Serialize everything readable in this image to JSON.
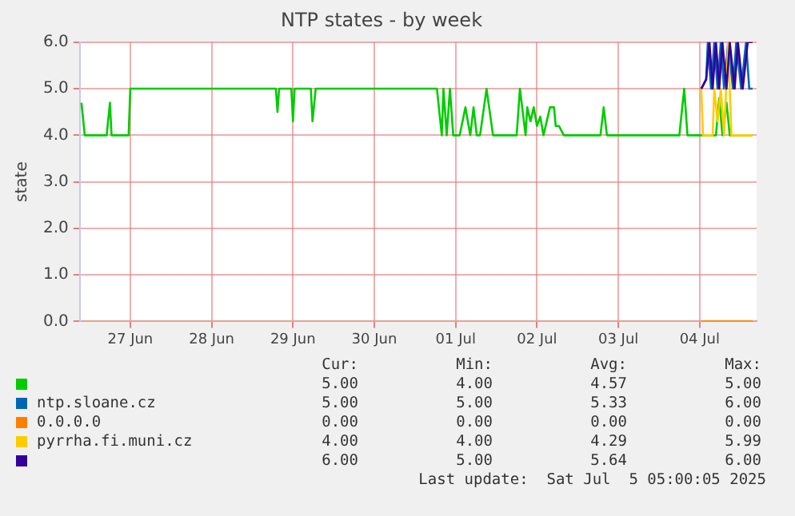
{
  "chart_data": {
    "type": "line",
    "title": "NTP states - by week",
    "ylabel": "state",
    "xlim": [
      "2025-06-26T21:07",
      "2025-07-05T04:48"
    ],
    "xticks": [
      {
        "value": "2025-06-27T12:00",
        "label": "27 Jun"
      },
      {
        "value": "2025-06-28T12:00",
        "label": "28 Jun"
      },
      {
        "value": "2025-06-29T12:00",
        "label": "29 Jun"
      },
      {
        "value": "2025-06-30T12:00",
        "label": "30 Jun"
      },
      {
        "value": "2025-07-01T12:00",
        "label": "01 Jul"
      },
      {
        "value": "2025-07-02T12:00",
        "label": "02 Jul"
      },
      {
        "value": "2025-07-03T12:00",
        "label": "03 Jul"
      },
      {
        "value": "2025-07-04T12:00",
        "label": "04 Jul"
      }
    ],
    "ylim": [
      0,
      6
    ],
    "yticks": [
      {
        "value": 0,
        "label": "0.0"
      },
      {
        "value": 1,
        "label": "1.0"
      },
      {
        "value": 2,
        "label": "2.0"
      },
      {
        "value": 3,
        "label": "3.0"
      },
      {
        "value": 4,
        "label": "4.0"
      },
      {
        "value": 5,
        "label": "5.0"
      },
      {
        "value": 6,
        "label": "6.0"
      }
    ],
    "grid": true,
    "legend": "bottom",
    "marker": "none",
    "line_style": "solid",
    "series": [
      {
        "color": "#00cc00",
        "x": [
          "2025-06-26T21:36",
          "2025-06-26T22:34",
          "2025-06-27T05:02",
          "2025-06-27T06:00",
          "2025-06-27T06:29",
          "2025-06-27T11:31",
          "2025-06-27T12:00",
          "2025-06-29T06:58",
          "2025-06-29T07:26",
          "2025-06-29T07:55",
          "2025-06-29T11:31",
          "2025-06-29T12:00",
          "2025-06-29T12:29",
          "2025-06-29T17:17",
          "2025-06-29T17:46",
          "2025-06-29T18:43",
          "2025-07-01T06:29",
          "2025-07-01T07:55",
          "2025-07-01T08:24",
          "2025-07-01T09:22",
          "2025-07-01T10:19",
          "2025-07-01T11:17",
          "2025-07-01T13:12",
          "2025-07-01T14:53",
          "2025-07-01T16:19",
          "2025-07-01T17:17",
          "2025-07-01T18:14",
          "2025-07-01T19:12",
          "2025-07-01T21:07",
          "2025-07-01T23:02",
          "2025-07-02T00:14",
          "2025-07-02T06:00",
          "2025-07-02T06:58",
          "2025-07-02T08:38",
          "2025-07-02T09:07",
          "2025-07-02T10:05",
          "2025-07-02T11:02",
          "2025-07-02T12:00",
          "2025-07-02T12:58",
          "2025-07-02T13:55",
          "2025-07-02T15:50",
          "2025-07-02T17:02",
          "2025-07-02T17:31",
          "2025-07-02T18:29",
          "2025-07-02T19:55",
          "2025-07-03T06:43",
          "2025-07-03T07:41",
          "2025-07-03T08:38",
          "2025-07-04T06:00",
          "2025-07-04T07:26",
          "2025-07-04T08:24",
          "2025-07-04T10:19",
          "2025-07-04T12:29",
          "2025-07-04T16:48",
          "2025-07-04T17:46",
          "2025-07-04T18:43",
          "2025-07-04T19:55",
          "2025-07-04T20:53",
          "2025-07-05T03:36"
        ],
        "values": [
          4.7,
          4,
          4,
          4.7,
          4,
          4,
          5,
          5,
          4.5,
          5,
          5,
          4.3,
          5,
          5,
          4.3,
          5,
          5,
          4,
          5,
          4,
          5,
          4,
          4,
          4.6,
          4,
          4.6,
          4,
          4,
          5,
          4,
          4,
          4,
          5,
          4,
          4.6,
          4.3,
          4.6,
          4.2,
          4.4,
          4,
          4.6,
          4.6,
          4.2,
          4.2,
          4,
          4,
          4.6,
          4,
          4,
          5,
          4,
          4,
          4,
          4,
          4.8,
          4,
          4.7,
          4,
          4
        ]
      },
      {
        "name": "ntp.sloane.cz",
        "color": "#0066b3",
        "x": [
          "2025-07-04T12:29",
          "2025-07-04T13:55",
          "2025-07-04T14:24",
          "2025-07-04T15:22",
          "2025-07-04T16:19",
          "2025-07-04T17:17",
          "2025-07-04T18:14",
          "2025-07-04T19:12",
          "2025-07-04T20:24",
          "2025-07-04T21:50",
          "2025-07-04T22:48",
          "2025-07-05T00:14",
          "2025-07-05T01:41",
          "2025-07-05T02:38",
          "2025-07-05T03:36"
        ],
        "values": [
          5,
          5.2,
          6,
          5,
          6,
          5,
          6,
          5,
          6,
          5,
          6,
          5,
          6,
          5,
          5
        ]
      },
      {
        "name": "0.0.0.0",
        "color": "#ff8000",
        "x": [
          "2025-07-04T12:29",
          "2025-07-05T03:36"
        ],
        "values": [
          0,
          0
        ]
      },
      {
        "name": "pyrrha.fi.muni.cz",
        "color": "#ffcc00",
        "x": [
          "2025-07-04T12:29",
          "2025-07-04T12:58",
          "2025-07-04T15:50",
          "2025-07-04T16:19",
          "2025-07-04T17:17",
          "2025-07-04T18:14",
          "2025-07-04T19:12",
          "2025-07-04T20:24",
          "2025-07-04T21:22",
          "2025-07-05T03:36"
        ],
        "values": [
          5,
          4,
          4,
          5,
          4.3,
          5,
          4,
          5.99,
          4,
          4
        ]
      },
      {
        "color": "#330099",
        "x": [
          "2025-07-04T12:29",
          "2025-07-04T13:55",
          "2025-07-04T14:53",
          "2025-07-04T15:50",
          "2025-07-04T16:48",
          "2025-07-04T17:46",
          "2025-07-04T18:43",
          "2025-07-04T19:55",
          "2025-07-04T20:53",
          "2025-07-04T22:19",
          "2025-07-04T23:17",
          "2025-07-05T00:43",
          "2025-07-05T02:10",
          "2025-07-05T03:36"
        ],
        "values": [
          5,
          5.2,
          6,
          5,
          6,
          5,
          6,
          5,
          6,
          5,
          6,
          5,
          6,
          6
        ]
      }
    ],
    "annotations": [
      "Cur:",
      "Min:",
      "Avg:",
      "Max:",
      "5.00",
      "4.00",
      "4.57",
      "5.00",
      "5.00",
      "5.00",
      "5.33",
      "6.00",
      "0.00",
      "0.00",
      "0.00",
      "0.00",
      "4.00",
      "4.00",
      "4.29",
      "5.99",
      "6.00",
      "5.00",
      "5.64",
      "6.00",
      "Last update:  Sat Jul  5 05:00:05 2025"
    ]
  }
}
